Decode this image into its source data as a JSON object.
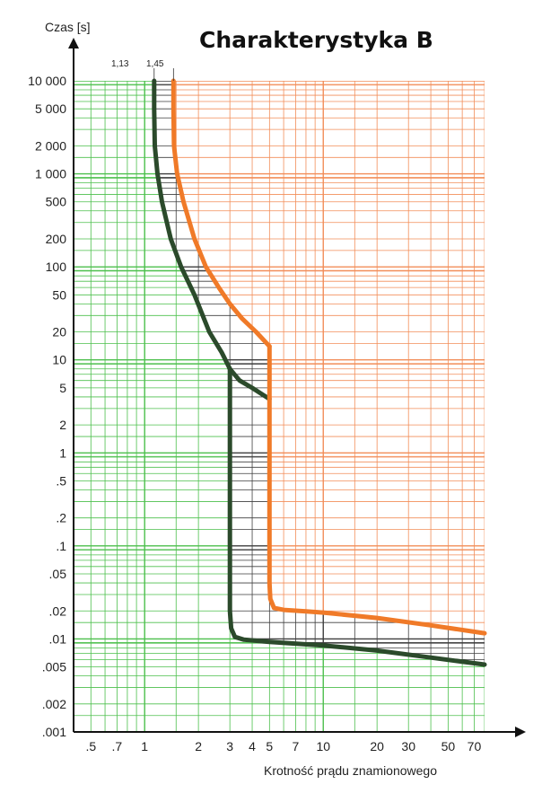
{
  "chart_data": {
    "type": "line",
    "title": "Charakterystyka B",
    "xlabel": "Krotność prądu znamionowego",
    "ylabel": "Czas [s]",
    "x_scale": "log",
    "y_scale": "log",
    "xlim": [
      0.4,
      80
    ],
    "ylim": [
      0.001,
      10000
    ],
    "x_ticks": [
      0.5,
      0.7,
      1,
      2,
      3,
      4,
      5,
      7,
      10,
      20,
      30,
      50,
      70
    ],
    "x_tick_labels": [
      ".5",
      ".7",
      "1",
      "2",
      "3",
      "4",
      "5",
      "7",
      "10",
      "20",
      "30",
      "50",
      "70"
    ],
    "y_ticks": [
      10000,
      5000,
      2000,
      1000,
      500,
      200,
      100,
      50,
      20,
      10,
      5,
      2,
      1,
      0.5,
      0.2,
      0.1,
      0.05,
      0.02,
      0.01,
      0.005,
      0.002,
      0.001
    ],
    "y_tick_labels": [
      "10 000",
      "5 000",
      "2 000",
      "1 000",
      "500",
      "200",
      "100",
      "50",
      "20",
      "10",
      "5",
      "2",
      "1",
      ".5",
      ".2",
      ".1",
      ".05",
      ".02",
      ".01",
      ".005",
      ".002",
      ".001"
    ],
    "annotations": [
      "1,13",
      "1,45"
    ],
    "grid": true,
    "region_colors": {
      "green": "#2db52d",
      "orange": "#f07a3c",
      "black": "#2a2a2a"
    },
    "series": [
      {
        "color": "#2b4a2b",
        "x": [
          1.13,
          1.13,
          1.14,
          1.18,
          1.25,
          1.4,
          1.6,
          1.9,
          2.3,
          2.7,
          3.0
        ],
        "y": [
          10000,
          5000,
          2000,
          1000,
          500,
          200,
          100,
          50,
          20,
          12,
          8
        ]
      },
      {
        "color": "#2b4a2b",
        "x": [
          3.0,
          3.4,
          4.0,
          4.6,
          5.0
        ],
        "y": [
          8,
          6,
          5,
          4.2,
          3.8
        ]
      },
      {
        "color": "#2b4a2b",
        "x": [
          3.0,
          3.0,
          3.0,
          3.05,
          3.2,
          3.6,
          5,
          10,
          20,
          40,
          80
        ],
        "y": [
          8,
          1,
          0.02,
          0.013,
          0.0105,
          0.0098,
          0.0093,
          0.0085,
          0.0075,
          0.0063,
          0.0053
        ]
      },
      {
        "color": "#f07a28",
        "x": [
          1.45,
          1.45,
          1.46,
          1.52,
          1.65,
          1.9,
          2.2,
          2.6,
          3.0,
          3.5,
          4.2,
          5.0
        ],
        "y": [
          10000,
          5000,
          2000,
          1000,
          500,
          200,
          100,
          60,
          40,
          28,
          20,
          14
        ]
      },
      {
        "color": "#f07a28",
        "x": [
          5.0,
          5.0,
          5.0,
          5.05,
          5.3,
          6,
          8,
          10,
          20,
          40,
          80
        ],
        "y": [
          14,
          1,
          0.04,
          0.027,
          0.0215,
          0.0205,
          0.0198,
          0.0192,
          0.0168,
          0.014,
          0.0115
        ]
      }
    ]
  }
}
